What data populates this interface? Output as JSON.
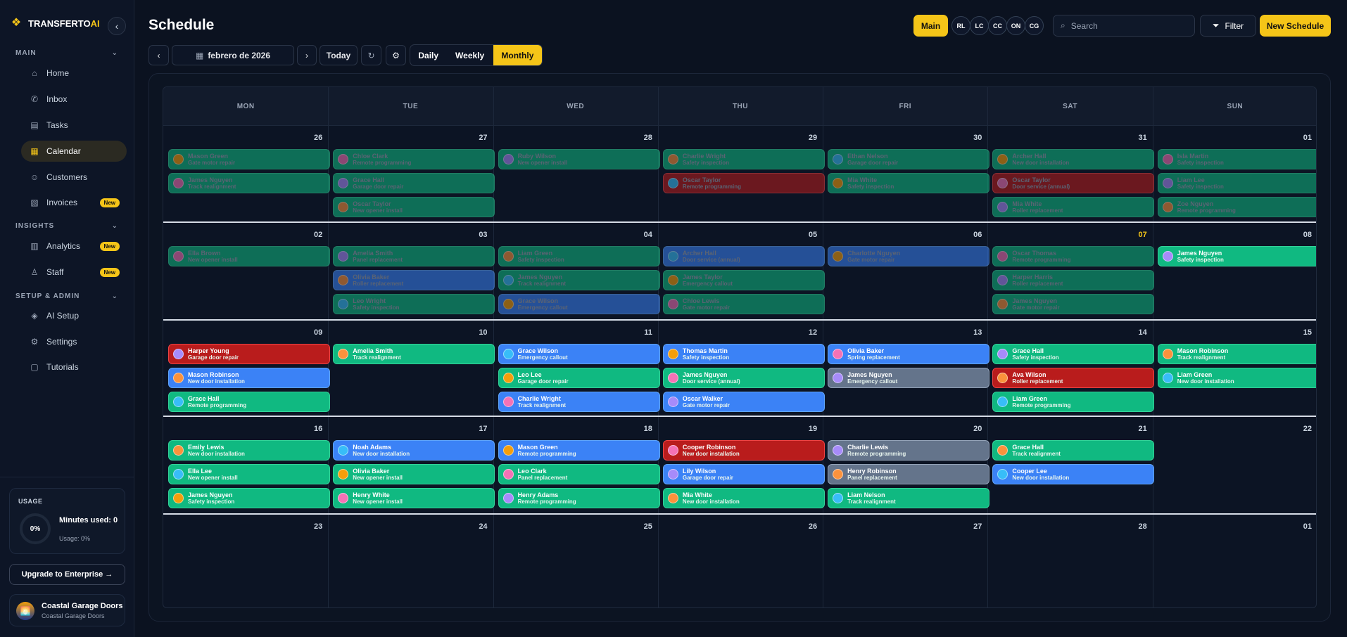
{
  "app": {
    "brand_prefix": "TRANSFERTO",
    "brand_suffix": "AI"
  },
  "sidebar": {
    "sections": [
      "MAIN",
      "INSIGHTS",
      "SETUP & ADMIN"
    ],
    "items": [
      {
        "label": "Home",
        "icon": "home-icon"
      },
      {
        "label": "Inbox",
        "icon": "phone-icon"
      },
      {
        "label": "Tasks",
        "icon": "clipboard-icon"
      },
      {
        "label": "Calendar",
        "icon": "calendar-icon"
      },
      {
        "label": "Customers",
        "icon": "users-icon"
      },
      {
        "label": "Invoices",
        "icon": "invoice-icon",
        "badge": "New"
      },
      {
        "label": "Analytics",
        "icon": "chart-icon",
        "badge": "New"
      },
      {
        "label": "Staff",
        "icon": "staff-icon",
        "badge": "New"
      },
      {
        "label": "AI Setup",
        "icon": "layers-icon"
      },
      {
        "label": "Settings",
        "icon": "gear-icon"
      },
      {
        "label": "Tutorials",
        "icon": "book-icon"
      }
    ],
    "usage": {
      "label": "USAGE",
      "percent": "0%",
      "minutes": "Minutes used: 0",
      "usage_text": "Usage: 0%"
    },
    "upgrade": "Upgrade to Enterprise →",
    "org": {
      "name": "Coastal Garage Doors",
      "sub": "Coastal Garage Doors"
    }
  },
  "header": {
    "title": "Schedule",
    "main_btn": "Main",
    "avatars": [
      "RL",
      "LC",
      "CC",
      "ON",
      "CG"
    ],
    "search_placeholder": "Search",
    "filter": "Filter",
    "new_schedule": "New Schedule"
  },
  "toolbar": {
    "month": "febrero de 2026",
    "today": "Today",
    "views": [
      "Daily",
      "Weekly",
      "Monthly"
    ],
    "active_view": "Monthly"
  },
  "calendar": {
    "weekdays": [
      "MON",
      "TUE",
      "WED",
      "THU",
      "FRI",
      "SAT",
      "SUN"
    ],
    "weeks": [
      {
        "days": [
          "26",
          "27",
          "28",
          "29",
          "30",
          "31",
          "01"
        ],
        "today_index": -1,
        "events": [
          [
            {
              "n": "Mason Green",
              "s": "Gate motor repair",
              "c": "green",
              "p": 1
            },
            {
              "n": "James Nguyen",
              "s": "Track realignment",
              "c": "green",
              "p": 1
            }
          ],
          [
            {
              "n": "Chloe Clark",
              "s": "Remote programming",
              "c": "green",
              "p": 1
            },
            {
              "n": "Grace Hall",
              "s": "Garage door repair",
              "c": "green",
              "p": 1
            },
            {
              "n": "Oscar Taylor",
              "s": "New opener install",
              "c": "green",
              "p": 1
            }
          ],
          [
            {
              "n": "Ruby Wilson",
              "s": "New opener install",
              "c": "green",
              "p": 1
            }
          ],
          [
            {
              "n": "Charlie Wright",
              "s": "Safety inspection",
              "c": "green",
              "p": 1
            },
            {
              "n": "Oscar Taylor",
              "s": "Remote programming",
              "c": "red",
              "p": 1
            }
          ],
          [
            {
              "n": "Ethan Nelson",
              "s": "Garage door repair",
              "c": "green",
              "p": 1
            },
            {
              "n": "Mia White",
              "s": "Safety inspection",
              "c": "green",
              "p": 1
            }
          ],
          [
            {
              "n": "Archer Hall",
              "s": "New door installation",
              "c": "green",
              "p": 1
            },
            {
              "n": "Oscar Taylor",
              "s": "Door service (annual)",
              "c": "red",
              "p": 1
            },
            {
              "n": "Mia White",
              "s": "Roller replacement",
              "c": "green",
              "p": 1
            }
          ],
          [
            {
              "n": "Isla Martin",
              "s": "Safety inspection",
              "c": "green",
              "p": 1
            },
            {
              "n": "Liam Lee",
              "s": "Safety inspection",
              "c": "green",
              "p": 1
            },
            {
              "n": "Zoe Nguyen",
              "s": "Remote programming",
              "c": "green",
              "p": 1
            }
          ]
        ]
      },
      {
        "days": [
          "02",
          "03",
          "04",
          "05",
          "06",
          "07",
          "08"
        ],
        "today_index": 5,
        "events": [
          [
            {
              "n": "Ella Brown",
              "s": "New opener install",
              "c": "green",
              "p": 1
            }
          ],
          [
            {
              "n": "Amelia Smith",
              "s": "Panel replacement",
              "c": "green",
              "p": 1
            },
            {
              "n": "Olivia Baker",
              "s": "Roller replacement",
              "c": "blue",
              "p": 1
            },
            {
              "n": "Leo Wright",
              "s": "Safety inspection",
              "c": "green",
              "p": 1
            }
          ],
          [
            {
              "n": "Liam Green",
              "s": "Safety inspection",
              "c": "green",
              "p": 1
            },
            {
              "n": "James Nguyen",
              "s": "Track realignment",
              "c": "green",
              "p": 1
            },
            {
              "n": "Grace Wilson",
              "s": "Emergency callout",
              "c": "blue",
              "p": 1
            }
          ],
          [
            {
              "n": "Archer Hall",
              "s": "Door service (annual)",
              "c": "blue",
              "p": 1
            },
            {
              "n": "James Taylor",
              "s": "Emergency callout",
              "c": "green",
              "p": 1
            },
            {
              "n": "Chloe Lewis",
              "s": "Gate motor repair",
              "c": "green",
              "p": 1
            }
          ],
          [
            {
              "n": "Charlotte Nguyen",
              "s": "Gate motor repair",
              "c": "blue",
              "p": 1
            }
          ],
          [
            {
              "n": "Oscar Thomas",
              "s": "Remote programming",
              "c": "green",
              "p": 1
            },
            {
              "n": "Harper Harris",
              "s": "Roller replacement",
              "c": "green",
              "p": 1
            },
            {
              "n": "James Nguyen",
              "s": "Gate motor repair",
              "c": "green",
              "p": 1
            }
          ],
          [
            {
              "n": "James Nguyen",
              "s": "Safety inspection",
              "c": "green",
              "p": 0
            }
          ]
        ]
      },
      {
        "days": [
          "09",
          "10",
          "11",
          "12",
          "13",
          "14",
          "15"
        ],
        "today_index": -1,
        "events": [
          [
            {
              "n": "Harper Young",
              "s": "Garage door repair",
              "c": "red",
              "p": 0
            },
            {
              "n": "Mason Robinson",
              "s": "New door installation",
              "c": "blue",
              "p": 0
            },
            {
              "n": "Grace Hall",
              "s": "Remote programming",
              "c": "green",
              "p": 0
            }
          ],
          [
            {
              "n": "Amelia Smith",
              "s": "Track realignment",
              "c": "green",
              "p": 0
            }
          ],
          [
            {
              "n": "Grace Wilson",
              "s": "Emergency callout",
              "c": "blue",
              "p": 0
            },
            {
              "n": "Leo Lee",
              "s": "Garage door repair",
              "c": "green",
              "p": 0
            },
            {
              "n": "Charlie Wright",
              "s": "Track realignment",
              "c": "blue",
              "p": 0
            }
          ],
          [
            {
              "n": "Thomas Martin",
              "s": "Safety inspection",
              "c": "blue",
              "p": 0
            },
            {
              "n": "James Nguyen",
              "s": "Door service (annual)",
              "c": "green",
              "p": 0
            },
            {
              "n": "Oscar Walker",
              "s": "Gate motor repair",
              "c": "blue",
              "p": 0
            }
          ],
          [
            {
              "n": "Olivia Baker",
              "s": "Spring replacement",
              "c": "blue",
              "p": 0
            },
            {
              "n": "James Nguyen",
              "s": "Emergency callout",
              "c": "gray",
              "p": 0
            }
          ],
          [
            {
              "n": "Grace Hall",
              "s": "Safety inspection",
              "c": "green",
              "p": 0
            },
            {
              "n": "Ava Wilson",
              "s": "Roller replacement",
              "c": "red",
              "p": 0
            },
            {
              "n": "Liam Green",
              "s": "Remote programming",
              "c": "green",
              "p": 0
            }
          ],
          [
            {
              "n": "Mason Robinson",
              "s": "Track realignment",
              "c": "green",
              "p": 0
            },
            {
              "n": "Liam Green",
              "s": "New door installation",
              "c": "green",
              "p": 0
            }
          ]
        ]
      },
      {
        "days": [
          "16",
          "17",
          "18",
          "19",
          "20",
          "21",
          "22"
        ],
        "today_index": -1,
        "events": [
          [
            {
              "n": "Emily Lewis",
              "s": "New door installation",
              "c": "green",
              "p": 0
            },
            {
              "n": "Ella Lee",
              "s": "New opener install",
              "c": "green",
              "p": 0
            },
            {
              "n": "James Nguyen",
              "s": "Safety inspection",
              "c": "green",
              "p": 0
            }
          ],
          [
            {
              "n": "Noah Adams",
              "s": "New door installation",
              "c": "blue",
              "p": 0
            },
            {
              "n": "Olivia Baker",
              "s": "New opener install",
              "c": "green",
              "p": 0
            },
            {
              "n": "Henry White",
              "s": "New opener install",
              "c": "green",
              "p": 0
            }
          ],
          [
            {
              "n": "Mason Green",
              "s": "Remote programming",
              "c": "blue",
              "p": 0
            },
            {
              "n": "Leo Clark",
              "s": "Panel replacement",
              "c": "green",
              "p": 0
            },
            {
              "n": "Henry Adams",
              "s": "Remote programming",
              "c": "green",
              "p": 0
            }
          ],
          [
            {
              "n": "Cooper Robinson",
              "s": "New door installation",
              "c": "red",
              "p": 0
            },
            {
              "n": "Lily Wilson",
              "s": "Garage door repair",
              "c": "blue",
              "p": 0
            },
            {
              "n": "Mia White",
              "s": "New door installation",
              "c": "green",
              "p": 0
            }
          ],
          [
            {
              "n": "Charlie Lewis",
              "s": "Remote programming",
              "c": "gray",
              "p": 0
            },
            {
              "n": "Henry Robinson",
              "s": "Panel replacement",
              "c": "gray",
              "p": 0
            },
            {
              "n": "Liam Nelson",
              "s": "Track realignment",
              "c": "green",
              "p": 0
            }
          ],
          [
            {
              "n": "Grace Hall",
              "s": "Track realignment",
              "c": "green",
              "p": 0
            },
            {
              "n": "Cooper Lee",
              "s": "New door installation",
              "c": "blue",
              "p": 0
            }
          ],
          []
        ]
      },
      {
        "days": [
          "23",
          "24",
          "25",
          "26",
          "27",
          "28",
          "01"
        ],
        "today_index": -1,
        "events": [
          [],
          [],
          [],
          [],
          [],
          [],
          []
        ]
      }
    ]
  }
}
